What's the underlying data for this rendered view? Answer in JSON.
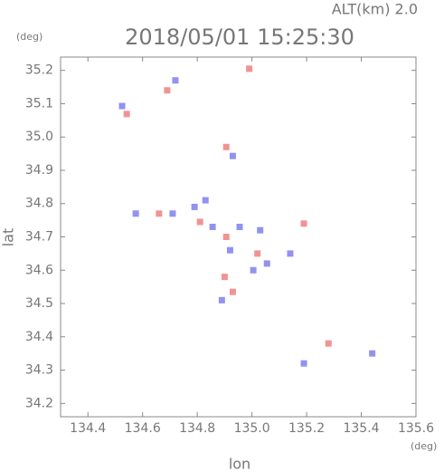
{
  "chart_data": {
    "type": "scatter",
    "title": "2018/05/01 15:25:30",
    "subtitle": "ALT(km) 2.0",
    "y_unit": "(deg)",
    "x_unit": "(deg)",
    "y_label": "lat",
    "x_label": "lon",
    "xlim": [
      134.3,
      135.6
    ],
    "ylim": [
      34.16,
      35.24
    ],
    "xticks": [
      134.4,
      134.6,
      134.8,
      {
        "value": 135,
        "label": "135.0"
      },
      135.2,
      135.4,
      135.6
    ],
    "yticks": [
      34.2,
      34.3,
      34.4,
      34.5,
      34.6,
      34.7,
      34.8,
      34.9,
      {
        "value": 35,
        "label": "35.0"
      },
      35.1,
      35.2
    ],
    "series": [
      {
        "color": "#ee8080",
        "x": [
          134.542,
          134.99,
          134.906,
          134.66,
          134.81,
          134.906,
          135.02,
          135.19,
          134.9,
          134.93,
          135.28,
          134.69
        ],
        "values": [
          35.069,
          35.205,
          34.97,
          34.77,
          34.745,
          34.7,
          34.65,
          34.74,
          34.58,
          34.535,
          34.38,
          35.14
        ]
      },
      {
        "color": "#7f7fee",
        "x": [
          134.525,
          134.72,
          134.93,
          134.83,
          134.575,
          134.71,
          134.79,
          134.856,
          134.955,
          134.92,
          135.03,
          135.055,
          135.005,
          135.14,
          134.89,
          135.19,
          135.44
        ],
        "values": [
          35.093,
          35.17,
          34.943,
          34.81,
          34.77,
          34.77,
          34.79,
          34.73,
          34.73,
          34.66,
          34.72,
          34.62,
          34.6,
          34.65,
          34.51,
          34.32,
          34.35
        ]
      }
    ]
  }
}
